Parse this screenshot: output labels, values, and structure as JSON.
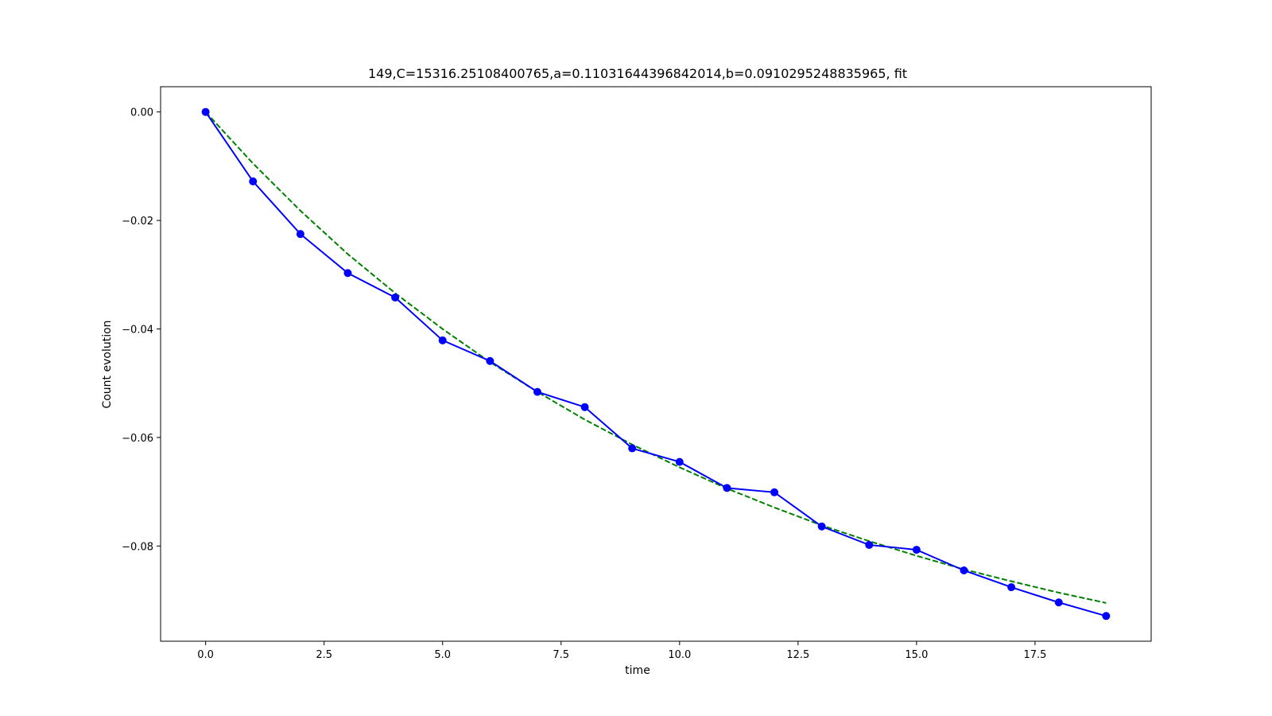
{
  "chart_data": {
    "type": "line",
    "title": "149,C=15316.25108400765,a=0.11031644396842014,b=0.0910295248835965, fit",
    "xlabel": "time",
    "ylabel": "Count evolution",
    "xlim": [
      -0.95,
      19.95
    ],
    "ylim": [
      -0.09755,
      0.00465
    ],
    "xticks": [
      0.0,
      2.5,
      5.0,
      7.5,
      10.0,
      12.5,
      15.0,
      17.5
    ],
    "xtick_labels": [
      "0.0",
      "2.5",
      "5.0",
      "7.5",
      "10.0",
      "12.5",
      "15.0",
      "17.5"
    ],
    "yticks": [
      0.0,
      -0.02,
      -0.04,
      -0.06,
      -0.08
    ],
    "ytick_labels": [
      "0.00",
      "−0.02",
      "−0.04",
      "−0.06",
      "−0.08"
    ],
    "grid": false,
    "series": [
      {
        "style": "solid-markers",
        "color": "#0000ff",
        "x": [
          0,
          1,
          2,
          3,
          4,
          5,
          6,
          7,
          8,
          9,
          10,
          11,
          12,
          13,
          14,
          15,
          16,
          17,
          18,
          19
        ],
        "values": [
          0.0,
          -0.0128,
          -0.0225,
          -0.0297,
          -0.0342,
          -0.0421,
          -0.0459,
          -0.0516,
          -0.0544,
          -0.062,
          -0.0645,
          -0.0693,
          -0.0701,
          -0.0764,
          -0.0798,
          -0.0807,
          -0.0845,
          -0.0876,
          -0.0904,
          -0.0929
        ]
      },
      {
        "style": "dashed",
        "color": "#008000",
        "x": [
          0,
          1,
          2,
          3,
          4,
          5,
          6,
          7,
          8,
          9,
          10,
          11,
          12,
          13,
          14,
          15,
          16,
          17,
          18,
          19
        ],
        "values": [
          0.0,
          -0.0095,
          -0.0182,
          -0.0262,
          -0.0334,
          -0.04,
          -0.0461,
          -0.0516,
          -0.0567,
          -0.0613,
          -0.0655,
          -0.0694,
          -0.0729,
          -0.0762,
          -0.0791,
          -0.0818,
          -0.0843,
          -0.0865,
          -0.0886,
          -0.0905
        ]
      }
    ]
  }
}
